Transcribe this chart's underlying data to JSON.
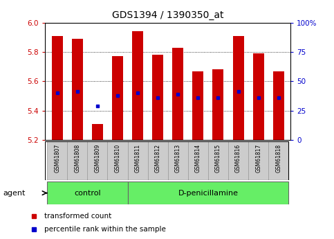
{
  "title": "GDS1394 / 1390350_at",
  "samples": [
    "GSM61807",
    "GSM61808",
    "GSM61809",
    "GSM61810",
    "GSM61811",
    "GSM61812",
    "GSM61813",
    "GSM61814",
    "GSM61815",
    "GSM61816",
    "GSM61817",
    "GSM61818"
  ],
  "transformed_count": [
    5.91,
    5.89,
    5.31,
    5.77,
    5.94,
    5.78,
    5.83,
    5.67,
    5.68,
    5.91,
    5.79,
    5.67
  ],
  "percentile_rank": [
    5.52,
    5.53,
    5.43,
    5.5,
    5.52,
    5.49,
    5.51,
    5.49,
    5.49,
    5.53,
    5.49,
    5.49
  ],
  "bar_bottom": 5.2,
  "ylim_left": [
    5.2,
    6.0
  ],
  "ylim_right": [
    0,
    100
  ],
  "yticks_left": [
    5.2,
    5.4,
    5.6,
    5.8,
    6.0
  ],
  "yticks_right": [
    0,
    25,
    50,
    75,
    100
  ],
  "ytick_labels_right": [
    "0",
    "25",
    "50",
    "75",
    "100%"
  ],
  "bar_color": "#cc0000",
  "percentile_color": "#0000cc",
  "control_indices": [
    0,
    1,
    2,
    3
  ],
  "dpenicillamine_indices": [
    4,
    5,
    6,
    7,
    8,
    9,
    10,
    11
  ],
  "control_label": "control",
  "dpenicillamine_label": "D-penicillamine",
  "agent_label": "agent",
  "legend_bar_label": "transformed count",
  "legend_pct_label": "percentile rank within the sample",
  "tick_color_left": "#cc0000",
  "tick_color_right": "#0000cc",
  "group_bg": "#66ee66",
  "sample_bg": "#cccccc",
  "bar_width": 0.55,
  "grid_ticks": [
    5.4,
    5.6,
    5.8
  ]
}
